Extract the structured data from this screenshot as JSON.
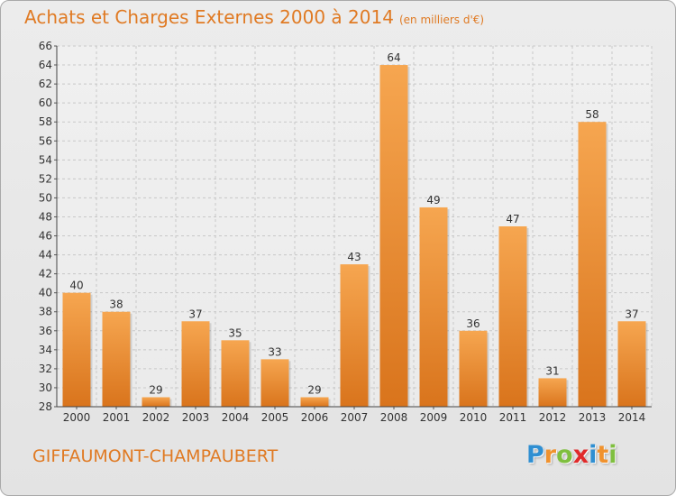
{
  "chart_data": {
    "type": "bar",
    "title": "Achats et Charges Externes 2000 à 2014",
    "unit": "(en milliers d'€)",
    "categories": [
      "2000",
      "2001",
      "2002",
      "2003",
      "2004",
      "2005",
      "2006",
      "2007",
      "2008",
      "2009",
      "2010",
      "2011",
      "2012",
      "2013",
      "2014"
    ],
    "values": [
      40,
      38,
      29,
      37,
      35,
      33,
      29,
      43,
      64,
      49,
      36,
      47,
      31,
      58,
      37
    ],
    "ylim": [
      28,
      66
    ],
    "ytick_step": 2,
    "grid": true,
    "bar_color": "#f0922e"
  },
  "footer": {
    "city": "GIFFAUMONT-CHAMPAUBERT",
    "logo_letters": [
      "P",
      "r",
      "o",
      "x",
      "i",
      "t",
      "i"
    ],
    "logo_colors": [
      "#2f8fd2",
      "#f0922e",
      "#7fbf3f",
      "#e02a2a",
      "#2f8fd2",
      "#f0922e",
      "#7fbf3f"
    ]
  }
}
